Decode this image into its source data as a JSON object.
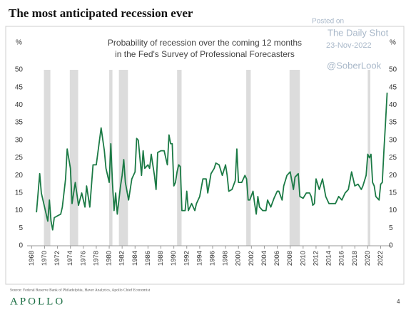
{
  "chart_data": {
    "type": "line",
    "title": "The most anticipated recession ever",
    "subtitle": [
      "Probability of recession over the coming 12 months",
      "in the Fed's Survey of Professional Forecasters"
    ],
    "y_label": "%",
    "y2_label": "%",
    "x": [
      1968.75,
      1969.25,
      1969.5,
      1970,
      1970.5,
      1970.75,
      1971,
      1971.25,
      1971.5,
      1972,
      1972.5,
      1972.75,
      1973.25,
      1973.5,
      1974,
      1974.25,
      1974.75,
      1975.25,
      1975.75,
      1976.25,
      1976.5,
      1977,
      1977.5,
      1978,
      1978.5,
      1978.75,
      1979.25,
      1979.5,
      1980,
      1980.25,
      1980.5,
      1980.75,
      1981,
      1981.25,
      1981.75,
      1982,
      1982.25,
      1982.5,
      1983,
      1983.25,
      1983.5,
      1984,
      1984.25,
      1984.5,
      1985,
      1985.25,
      1985.5,
      1986,
      1986.25,
      1986.5,
      1987,
      1987.25,
      1987.5,
      1988,
      1988.5,
      1989,
      1989.25,
      1989.5,
      1989.75,
      1990,
      1990.25,
      1990.5,
      1990.75,
      1991,
      1991.25,
      1991.75,
      1992,
      1992.25,
      1992.75,
      1993.25,
      1993.5,
      1994,
      1994.5,
      1995,
      1995.25,
      1995.75,
      1996.25,
      1996.5,
      1997,
      1997.5,
      1998,
      1998.25,
      1998.5,
      1999,
      1999.5,
      1999.75,
      2000,
      2000.5,
      2001,
      2001.25,
      2001.5,
      2001.75,
      2002.25,
      2002.5,
      2002.75,
      2003,
      2003.25,
      2003.75,
      2004.25,
      2004.5,
      2005,
      2005.5,
      2006,
      2006.25,
      2006.75,
      2007,
      2007.5,
      2008,
      2008.5,
      2008.75,
      2009.25,
      2009.5,
      2010,
      2010.5,
      2011,
      2011.25,
      2011.5,
      2011.75,
      2012,
      2012.5,
      2013,
      2013.5,
      2014,
      2014.5,
      2015,
      2015.5,
      2016,
      2016.5,
      2017,
      2017.5,
      2018,
      2018.5,
      2019,
      2019.25,
      2019.75,
      2020,
      2020.25,
      2020.5,
      2020.75,
      2021,
      2021.25,
      2021.75,
      2022,
      2022.25,
      2022.5,
      2022.75,
      2023
    ],
    "series": [
      {
        "color": "#1b7a45",
        "values": [
          9.5,
          20.5,
          15,
          11,
          7,
          13,
          7,
          4.5,
          8,
          8.5,
          9,
          11,
          19,
          27.5,
          22,
          12,
          18,
          11.5,
          15,
          11,
          17,
          11,
          23,
          23,
          30,
          33.5,
          27,
          22,
          18,
          29,
          18,
          10,
          15,
          9,
          17,
          20,
          24.5,
          18,
          13,
          16,
          19,
          21,
          30.5,
          30,
          20,
          27,
          22,
          23,
          22,
          26,
          20,
          16,
          26.5,
          27,
          27,
          23,
          31.5,
          29,
          29,
          17,
          18,
          21,
          23,
          22.5,
          10,
          10,
          15.5,
          10,
          12,
          10,
          12,
          14,
          19,
          19,
          15,
          20.5,
          22,
          23.5,
          23,
          20,
          23,
          20,
          15.5,
          16,
          18.5,
          27.5,
          18,
          18,
          20,
          19,
          13,
          13,
          15.5,
          12,
          9,
          14,
          11,
          10,
          10,
          13,
          11,
          13.5,
          15.5,
          15.5,
          13,
          17,
          20,
          21,
          16,
          19.5,
          20.5,
          14,
          13.5,
          15,
          15,
          14,
          11.5,
          12,
          19,
          16,
          19,
          14,
          12,
          12,
          12,
          14,
          13,
          15,
          16,
          21,
          17,
          17.5,
          16,
          17,
          20,
          26,
          25,
          26,
          18,
          17,
          14,
          13,
          17.5,
          18,
          27,
          35,
          43.5
        ]
      }
    ],
    "recessions": {
      "color": "#dcdcdc",
      "periods": [
        [
          1969.9,
          1970.9
        ],
        [
          1973.9,
          1975.2
        ],
        [
          1980.0,
          1980.5
        ],
        [
          1981.5,
          1982.9
        ],
        [
          1990.5,
          1991.2
        ],
        [
          2001.2,
          2001.9
        ],
        [
          2007.9,
          2009.5
        ],
        [
          2020.0,
          2020.4
        ]
      ]
    },
    "xlim": [
      1967.3,
      2023.6
    ],
    "xticks": [
      1968,
      1970,
      1972,
      1974,
      1976,
      1978,
      1980,
      1982,
      1984,
      1986,
      1988,
      1990,
      1992,
      1994,
      1996,
      1998,
      2000,
      2002,
      2004,
      2006,
      2008,
      2010,
      2012,
      2014,
      2016,
      2018,
      2020,
      2022
    ],
    "ylim": [
      0,
      50
    ],
    "yticks": [
      0,
      5,
      10,
      15,
      20,
      25,
      30,
      35,
      40,
      45,
      50
    ],
    "y2lim": [
      0,
      50
    ],
    "y2ticks": [
      0,
      5,
      10,
      15,
      20,
      25,
      30,
      35,
      40,
      45,
      50
    ]
  },
  "watermark": {
    "posted": "Posted on",
    "site": "The Daily Shot",
    "date": "23-Nov-2022",
    "handle": "@SoberLook"
  },
  "footer": {
    "source": "Source: Federal Reserve Bank of Philadelphia, Haver Analytics, Apollo Chief Economist",
    "logo": "APOLLO",
    "page": "4"
  }
}
